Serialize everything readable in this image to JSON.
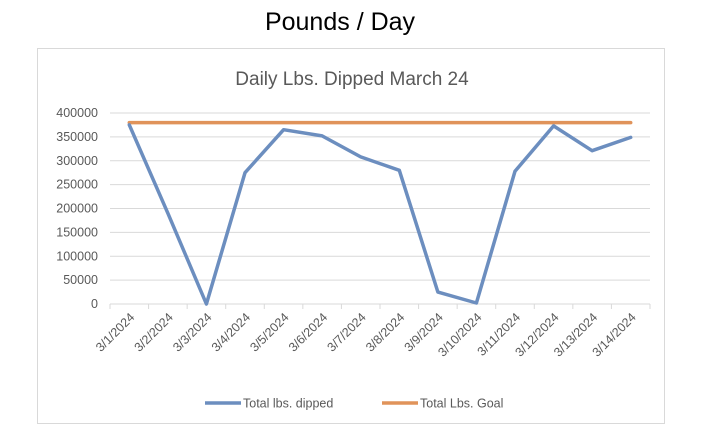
{
  "page_title": "Pounds / Day",
  "chart_data": {
    "type": "line",
    "title": "Daily Lbs. Dipped March 24",
    "xlabel": "",
    "ylabel": "",
    "ylim": [
      0,
      400000
    ],
    "yticks": [
      0,
      50000,
      100000,
      150000,
      200000,
      250000,
      300000,
      350000,
      400000
    ],
    "ytick_labels": [
      "0",
      "50000",
      "100000",
      "150000",
      "200000",
      "250000",
      "300000",
      "350000",
      "400000"
    ],
    "grid": true,
    "legend_position": "bottom",
    "categories": [
      "3/1/2024",
      "3/2/2024",
      "3/3/2024",
      "3/4/2024",
      "3/5/2024",
      "3/6/2024",
      "3/7/2024",
      "3/8/2024",
      "3/9/2024",
      "3/10/2024",
      "3/11/2024",
      "3/12/2024",
      "3/13/2024",
      "3/14/2024"
    ],
    "series": [
      {
        "name": "Total lbs. dipped",
        "color": "#6c8ebf",
        "values": [
          375000,
          190000,
          0,
          275000,
          365000,
          352000,
          308000,
          280000,
          25000,
          2000,
          278000,
          373000,
          321000,
          349000
        ]
      },
      {
        "name": "Total Lbs. Goal",
        "color": "#e0935a",
        "values": [
          380000,
          380000,
          380000,
          380000,
          380000,
          380000,
          380000,
          380000,
          380000,
          380000,
          380000,
          380000,
          380000,
          380000
        ]
      }
    ]
  }
}
